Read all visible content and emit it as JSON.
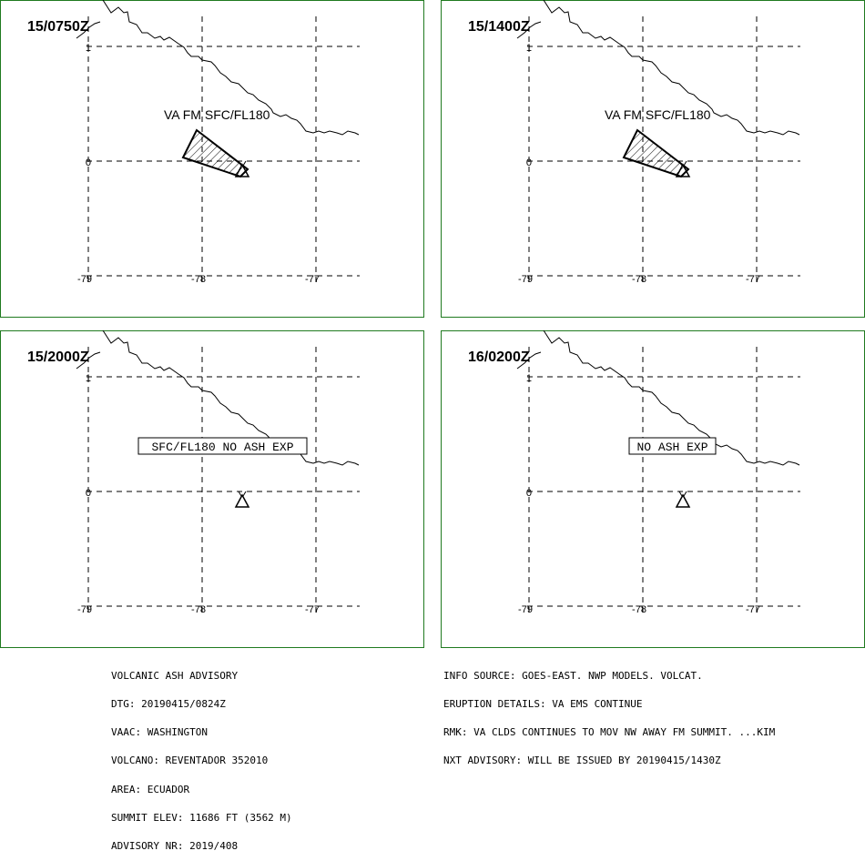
{
  "colors": {
    "frame": "#1f7a1f",
    "ink": "#000000",
    "background": "#ffffff"
  },
  "panels": [
    {
      "time": "15/0750Z",
      "label": "VA FM SFC/FL180",
      "boxed": false,
      "has_ash": true
    },
    {
      "time": "15/1400Z",
      "label": "VA FM SFC/FL180",
      "boxed": false,
      "has_ash": true
    },
    {
      "time": "15/2000Z",
      "label": "SFC/FL180 NO ASH EXP",
      "boxed": true,
      "has_ash": false
    },
    {
      "time": "16/0200Z",
      "label": "NO ASH EXP",
      "boxed": true,
      "has_ash": false
    }
  ],
  "map_grid": {
    "lat_labels": [
      "1",
      "0"
    ],
    "lon_labels": [
      "-79",
      "-78",
      "-77"
    ]
  },
  "volcano_icon": "volcano-triangle-icon",
  "advisory_left": [
    "VOLCANIC ASH ADVISORY",
    "DTG: 20190415/0824Z",
    "VAAC: WASHINGTON",
    "VOLCANO: REVENTADOR 352010",
    "AREA: ECUADOR",
    "SUMMIT ELEV: 11686 FT (3562 M)",
    "ADVISORY NR: 2019/408"
  ],
  "advisory_right": [
    "INFO SOURCE: GOES-EAST. NWP MODELS. VOLCAT.",
    "ERUPTION DETAILS: VA EMS CONTINUE",
    "RMK: VA CLDS CONTINUES TO MOV NW AWAY FM SUMMIT. ...KIM",
    "NXT ADVISORY: WILL BE ISSUED BY 20190415/1430Z"
  ]
}
